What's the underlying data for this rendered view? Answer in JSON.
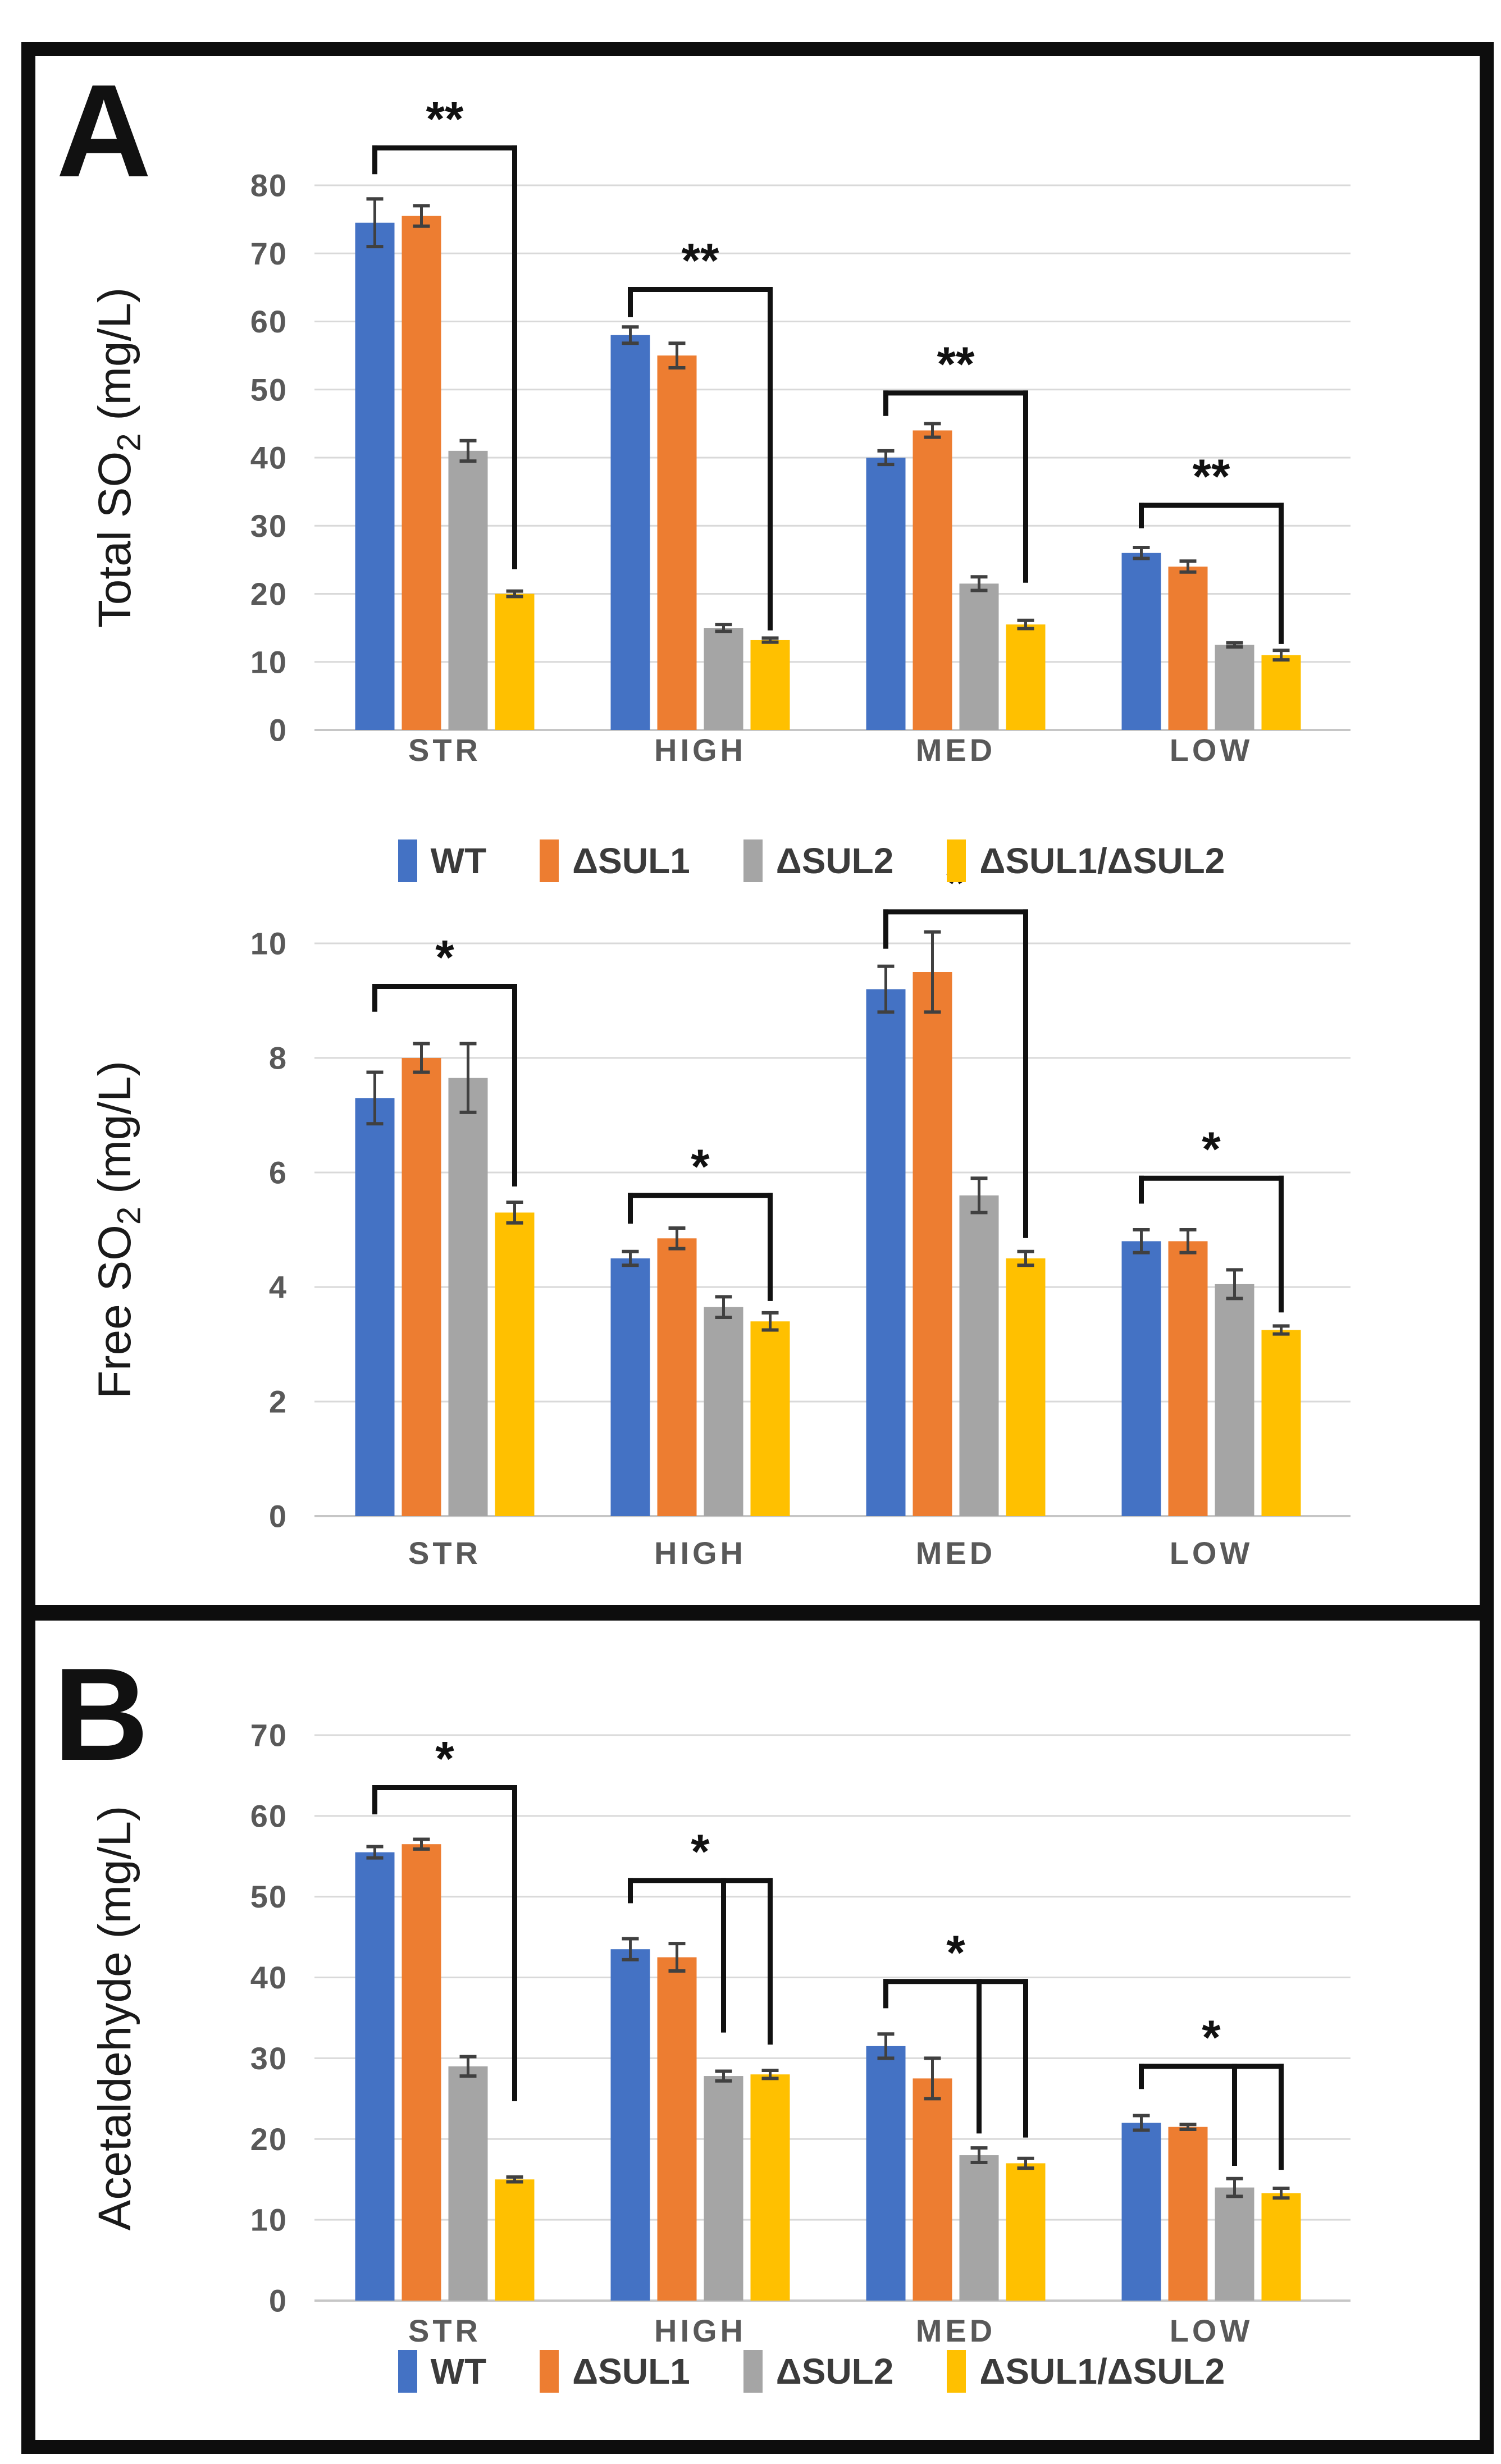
{
  "figure": {
    "panel_a_label": "A",
    "panel_b_label": "B"
  },
  "palette": {
    "wt_blue": "#4472C4",
    "sul1_orange": "#ED7D31",
    "sul2_gray": "#A5A5A5",
    "double_yellow": "#FFC000",
    "gridline": "#D9D9D9",
    "axis_line": "#C6C6C6",
    "tick_text": "#595959",
    "error_bar": "#404040",
    "bracket": "#111111",
    "frame": "#0d0d0d"
  },
  "legend": {
    "items": [
      {
        "key": "wt",
        "label": "WT",
        "color": "#4472C4"
      },
      {
        "key": "dsul1",
        "label": "ΔSUL1",
        "color": "#ED7D31"
      },
      {
        "key": "dsul2",
        "label": "ΔSUL2",
        "color": "#A5A5A5"
      },
      {
        "key": "dsul1-dsul2",
        "label": "ΔSUL1/ΔSUL2",
        "color": "#FFC000"
      }
    ]
  },
  "chart_data": [
    {
      "type": "bar",
      "panel": "A",
      "ylabel": {
        "pre": "Total SO",
        "sub": "2",
        "post": " (mg/L)"
      },
      "categories": [
        "STR",
        "HIGH",
        "MED",
        "LOW"
      ],
      "ylim": [
        0,
        80
      ],
      "ytick_step": 10,
      "yticks": [
        0,
        10,
        20,
        30,
        40,
        50,
        60,
        70,
        80
      ],
      "grid": true,
      "legend_position": "bottom",
      "series": [
        {
          "key": "wt",
          "name": "WT",
          "color": "#4472C4",
          "values": [
            74.5,
            58.0,
            40.0,
            26.0
          ],
          "errors": [
            3.5,
            1.2,
            1.0,
            0.8
          ]
        },
        {
          "key": "dsul1",
          "name": "ΔSUL1",
          "color": "#ED7D31",
          "values": [
            75.5,
            55.0,
            44.0,
            24.0
          ],
          "errors": [
            1.5,
            1.8,
            1.0,
            0.8
          ]
        },
        {
          "key": "dsul2",
          "name": "ΔSUL2",
          "color": "#A5A5A5",
          "values": [
            41.0,
            15.0,
            21.5,
            12.5
          ],
          "errors": [
            1.5,
            0.5,
            1.0,
            0.3
          ]
        },
        {
          "key": "dsul1-dsul2",
          "name": "ΔSUL1/ΔSUL2",
          "color": "#FFC000",
          "values": [
            20.0,
            13.2,
            15.5,
            11.0
          ],
          "errors": [
            0.4,
            0.3,
            0.6,
            0.7
          ]
        }
      ],
      "significance": [
        {
          "category": "STR",
          "label": "**",
          "from_series": 0,
          "top": 85.5,
          "left_tick_end": 82.0,
          "drops": [
            {
              "series": 3,
              "end": 24.0
            }
          ]
        },
        {
          "category": "HIGH",
          "label": "**",
          "from_series": 0,
          "top": 64.7,
          "left_tick_end": 61.0,
          "drops": [
            {
              "series": 3,
              "end": 15.0
            }
          ]
        },
        {
          "category": "MED",
          "label": "**",
          "from_series": 0,
          "top": 49.5,
          "left_tick_end": 46.5,
          "drops": [
            {
              "series": 3,
              "end": 22.0
            }
          ]
        },
        {
          "category": "LOW",
          "label": "**",
          "from_series": 0,
          "top": 33.0,
          "left_tick_end": 30.0,
          "drops": [
            {
              "series": 3,
              "end": 13.0
            }
          ]
        }
      ]
    },
    {
      "type": "bar",
      "panel": "A",
      "ylabel": {
        "pre": "Free SO",
        "sub": "2",
        "post": " (mg/L)"
      },
      "categories": [
        "STR",
        "HIGH",
        "MED",
        "LOW"
      ],
      "ylim": [
        0,
        10
      ],
      "ytick_step": 2,
      "yticks": [
        0,
        2,
        4,
        6,
        8,
        10
      ],
      "grid": true,
      "legend_position": "none",
      "series": [
        {
          "key": "wt",
          "name": "WT",
          "color": "#4472C4",
          "values": [
            7.3,
            4.5,
            9.2,
            4.8
          ],
          "errors": [
            0.45,
            0.12,
            0.4,
            0.2
          ]
        },
        {
          "key": "dsul1",
          "name": "ΔSUL1",
          "color": "#ED7D31",
          "values": [
            8.0,
            4.85,
            9.5,
            4.8
          ],
          "errors": [
            0.25,
            0.18,
            0.7,
            0.2
          ]
        },
        {
          "key": "dsul2",
          "name": "ΔSUL2",
          "color": "#A5A5A5",
          "values": [
            7.65,
            3.65,
            5.6,
            4.05
          ],
          "errors": [
            0.6,
            0.18,
            0.3,
            0.25
          ]
        },
        {
          "key": "dsul1-dsul2",
          "name": "ΔSUL1/ΔSUL2",
          "color": "#FFC000",
          "values": [
            5.3,
            3.4,
            4.5,
            3.25
          ],
          "errors": [
            0.18,
            0.15,
            0.12,
            0.07
          ]
        }
      ],
      "significance": [
        {
          "category": "STR",
          "label": "*",
          "from_series": 0,
          "top": 9.25,
          "left_tick_end": 8.85,
          "drops": [
            {
              "series": 3,
              "end": 5.8
            }
          ]
        },
        {
          "category": "HIGH",
          "label": "*",
          "from_series": 0,
          "top": 5.6,
          "left_tick_end": 5.15,
          "drops": [
            {
              "series": 3,
              "end": 3.8
            }
          ]
        },
        {
          "category": "MED",
          "label": "*",
          "from_series": 0,
          "top": 10.55,
          "left_tick_end": 9.95,
          "drops": [
            {
              "series": 3,
              "end": 4.9
            }
          ]
        },
        {
          "category": "LOW",
          "label": "*",
          "from_series": 0,
          "top": 5.9,
          "left_tick_end": 5.5,
          "drops": [
            {
              "series": 3,
              "end": 3.6
            }
          ]
        }
      ]
    },
    {
      "type": "bar",
      "panel": "B",
      "ylabel": {
        "pre": "Acetaldehyde (mg/L)",
        "sub": "",
        "post": ""
      },
      "categories": [
        "STR",
        "HIGH",
        "MED",
        "LOW"
      ],
      "ylim": [
        0,
        70
      ],
      "ytick_step": 10,
      "yticks": [
        0,
        10,
        20,
        30,
        40,
        50,
        60,
        70
      ],
      "grid": true,
      "legend_position": "bottom",
      "series": [
        {
          "key": "wt",
          "name": "WT",
          "color": "#4472C4",
          "values": [
            55.5,
            43.5,
            31.5,
            22.0
          ],
          "errors": [
            0.7,
            1.3,
            1.5,
            0.9
          ]
        },
        {
          "key": "dsul1",
          "name": "ΔSUL1",
          "color": "#ED7D31",
          "values": [
            56.5,
            42.5,
            27.5,
            21.5
          ],
          "errors": [
            0.6,
            1.7,
            2.5,
            0.3
          ]
        },
        {
          "key": "dsul2",
          "name": "ΔSUL2",
          "color": "#A5A5A5",
          "values": [
            29.0,
            27.8,
            18.0,
            14.0
          ],
          "errors": [
            1.2,
            0.6,
            0.9,
            1.1
          ]
        },
        {
          "key": "dsul1-dsul2",
          "name": "ΔSUL1/ΔSUL2",
          "color": "#FFC000",
          "values": [
            15.0,
            28.0,
            17.0,
            13.3
          ],
          "errors": [
            0.3,
            0.5,
            0.6,
            0.6
          ]
        }
      ],
      "significance": [
        {
          "category": "STR",
          "label": "*",
          "from_series": 0,
          "top": 63.5,
          "left_tick_end": 60.5,
          "drops": [
            {
              "series": 3,
              "end": 25.0
            }
          ]
        },
        {
          "category": "HIGH",
          "label": "*",
          "from_series": 0,
          "top": 52.0,
          "left_tick_end": 49.5,
          "drops": [
            {
              "series": 2,
              "end": 33.5
            },
            {
              "series": 3,
              "end": 32.0
            }
          ]
        },
        {
          "category": "MED",
          "label": "*",
          "from_series": 0,
          "top": 39.5,
          "left_tick_end": 36.5,
          "drops": [
            {
              "series": 2,
              "end": 21.0
            },
            {
              "series": 3,
              "end": 20.5
            }
          ]
        },
        {
          "category": "LOW",
          "label": "*",
          "from_series": 0,
          "top": 29.0,
          "left_tick_end": 26.5,
          "drops": [
            {
              "series": 2,
              "end": 17.0
            },
            {
              "series": 3,
              "end": 16.5
            }
          ]
        }
      ]
    }
  ]
}
